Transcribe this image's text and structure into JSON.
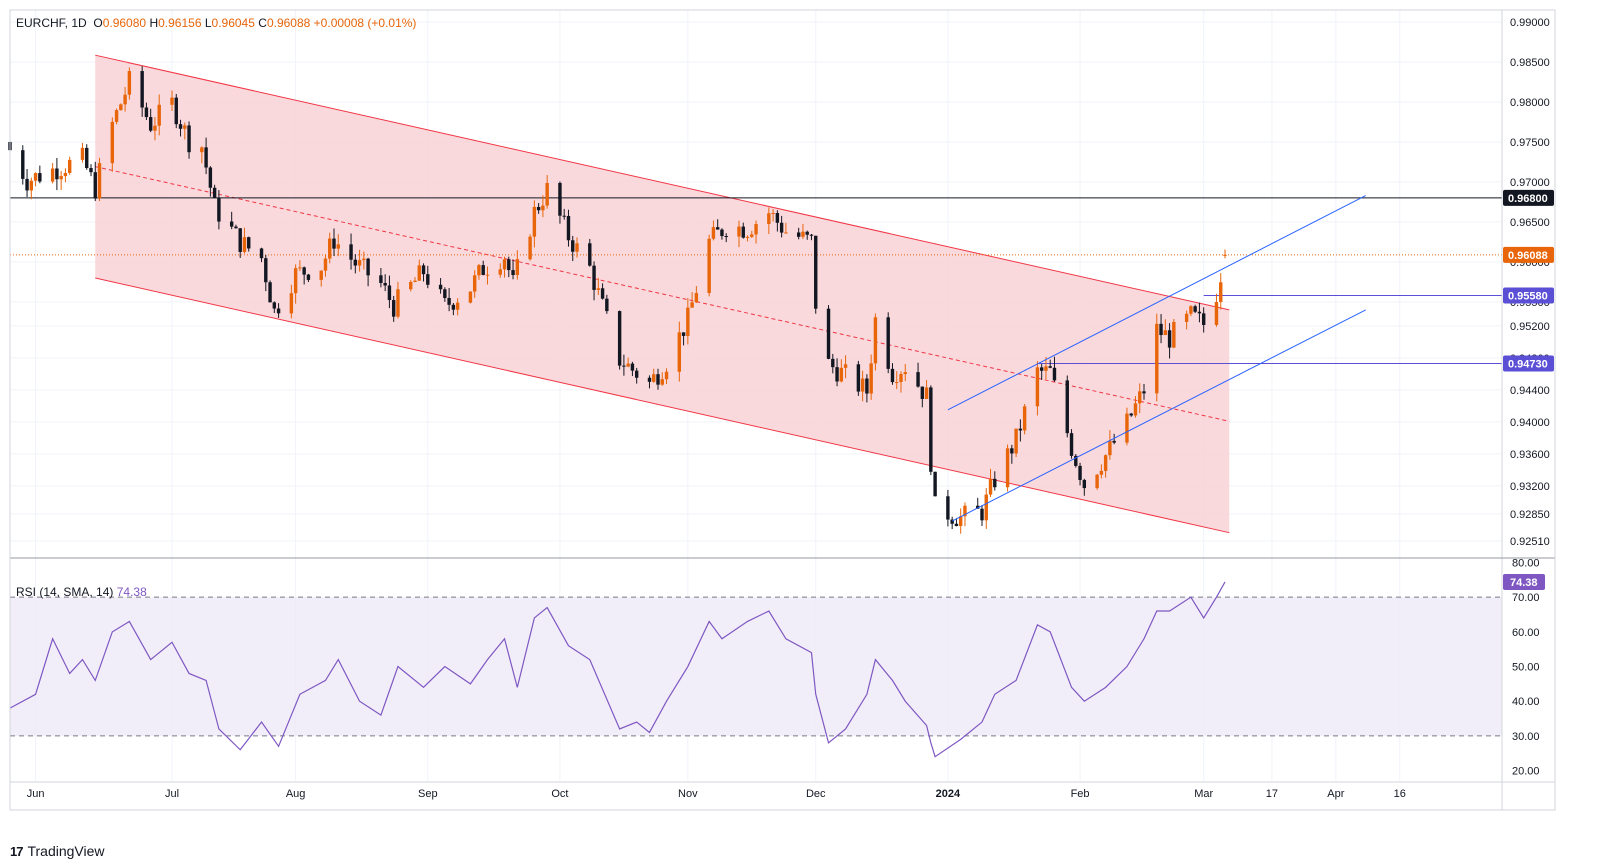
{
  "legend": {
    "symbol": "EURCHF",
    "timeframe": "1D",
    "o_label": "O",
    "open": "0.96080",
    "h_label": "H",
    "high": "0.96156",
    "l_label": "L",
    "low": "0.96045",
    "c_label": "C",
    "close": "0.96088",
    "change": "+0.00008 (+0.01%)"
  },
  "rsi_legend": {
    "label": "RSI (14, SMA, 14)",
    "value": "74.38"
  },
  "brand": {
    "logo": "17",
    "name": "TradingView"
  },
  "colors": {
    "up": "#e8650a",
    "down": "#131722",
    "channel_fill": "#f8cfd3",
    "channel_line": "#f23645",
    "trend_line": "#2962ff",
    "hline_black": "#131722",
    "hline_purple": "#5b4fd6",
    "rsi_line": "#7e57c2",
    "rsi_band": "#ede7f6",
    "price_badge": "#e8650a"
  },
  "chart_data": [
    {
      "type": "candlestick",
      "title": "EURCHF, 1D",
      "y_axis": {
        "range": [
          0.9231,
          0.9915
        ],
        "ticks": [
          "0.99000",
          "0.98500",
          "0.98000",
          "0.97500",
          "0.97000",
          "0.96500",
          "0.96000",
          "0.95500",
          "0.95200",
          "0.94800",
          "0.94400",
          "0.94000",
          "0.93600",
          "0.93200",
          "0.92850",
          "0.92510"
        ]
      },
      "x_axis": {
        "labels": [
          "Jun",
          "Jul",
          "Aug",
          "Sep",
          "Oct",
          "Nov",
          "Dec",
          "2024",
          "Feb",
          "Mar",
          "17",
          "Apr",
          "16"
        ]
      },
      "price_path": [
        [
          "2023-05-26",
          0.974
        ],
        [
          "2023-05-30",
          0.9702
        ],
        [
          "2023-06-05",
          0.9715
        ],
        [
          "2023-06-12",
          0.9728
        ],
        [
          "2023-06-15",
          0.9692
        ],
        [
          "2023-06-19",
          0.9772
        ],
        [
          "2023-06-23",
          0.9825
        ],
        [
          "2023-06-28",
          0.9772
        ],
        [
          "2023-07-03",
          0.9798
        ],
        [
          "2023-07-07",
          0.9752
        ],
        [
          "2023-07-10",
          0.9745
        ],
        [
          "2023-07-13",
          0.9668
        ],
        [
          "2023-07-19",
          0.9625
        ],
        [
          "2023-07-24",
          0.9605
        ],
        [
          "2023-07-27",
          0.9538
        ],
        [
          "2023-08-01",
          0.9585
        ],
        [
          "2023-08-07",
          0.9595
        ],
        [
          "2023-08-10",
          0.9628
        ],
        [
          "2023-08-15",
          0.9598
        ],
        [
          "2023-08-21",
          0.9572
        ],
        [
          "2023-08-24",
          0.9545
        ],
        [
          "2023-08-31",
          0.9588
        ],
        [
          "2023-09-05",
          0.9545
        ],
        [
          "2023-09-11",
          0.9568
        ],
        [
          "2023-09-14",
          0.9592
        ],
        [
          "2023-09-19",
          0.9608
        ],
        [
          "2023-09-21",
          0.9572
        ],
        [
          "2023-09-26",
          0.9662
        ],
        [
          "2023-09-29",
          0.969
        ],
        [
          "2023-10-04",
          0.9632
        ],
        [
          "2023-10-09",
          0.9592
        ],
        [
          "2023-10-16",
          0.9478
        ],
        [
          "2023-10-23",
          0.9448
        ],
        [
          "2023-10-27",
          0.9475
        ],
        [
          "2023-11-01",
          0.9528
        ],
        [
          "2023-11-06",
          0.9625
        ],
        [
          "2023-11-10",
          0.9645
        ],
        [
          "2023-11-15",
          0.9642
        ],
        [
          "2023-11-20",
          0.9662
        ],
        [
          "2023-11-24",
          0.9638
        ],
        [
          "2023-11-30",
          0.9625
        ],
        [
          "2023-12-01",
          0.9548
        ],
        [
          "2023-12-04",
          0.9472
        ],
        [
          "2023-12-08",
          0.9458
        ],
        [
          "2023-12-13",
          0.9438
        ],
        [
          "2023-12-15",
          0.9528
        ],
        [
          "2023-12-19",
          0.9462
        ],
        [
          "2023-12-22",
          0.947
        ],
        [
          "2023-12-27",
          0.9432
        ],
        [
          "2023-12-28",
          0.9352
        ],
        [
          "2023-12-29",
          0.9292
        ],
        [
          "2024-01-04",
          0.928
        ],
        [
          "2024-01-09",
          0.9288
        ],
        [
          "2024-01-12",
          0.9328
        ],
        [
          "2024-01-17",
          0.9378
        ],
        [
          "2024-01-22",
          0.9462
        ],
        [
          "2024-01-25",
          0.9462
        ],
        [
          "2024-01-30",
          0.9368
        ],
        [
          "2024-02-02",
          0.9322
        ],
        [
          "2024-02-07",
          0.9358
        ],
        [
          "2024-02-12",
          0.9398
        ],
        [
          "2024-02-16",
          0.944
        ],
        [
          "2024-02-19",
          0.9515
        ],
        [
          "2024-02-22",
          0.9505
        ],
        [
          "2024-02-27",
          0.9532
        ],
        [
          "2024-03-01",
          0.9522
        ],
        [
          "2024-03-04",
          0.9562
        ],
        [
          "2024-03-06",
          0.9609
        ]
      ],
      "channel": {
        "upper": [
          [
            "2023-06-15",
            0.98585
          ],
          [
            "2024-03-07",
            0.954
          ]
        ],
        "lower": [
          [
            "2023-06-15",
            0.95799
          ],
          [
            "2024-03-07",
            0.92614
          ]
        ],
        "mid": [
          [
            "2023-06-15",
            0.97192
          ],
          [
            "2024-03-07",
            0.94007
          ]
        ]
      },
      "trend_lines": [
        [
          [
            "2024-01-01",
            0.9415
          ],
          [
            "2024-04-08",
            0.9683
          ]
        ],
        [
          [
            "2024-01-02",
            0.9276
          ],
          [
            "2024-04-08",
            0.954
          ]
        ]
      ],
      "h_lines": [
        {
          "value": "0.96800",
          "color": "black"
        },
        {
          "value": "0.95580",
          "color": "purple"
        },
        {
          "value": "0.94730",
          "color": "purple"
        }
      ],
      "current_price": "0.96088"
    },
    {
      "type": "line",
      "title": "RSI (14, SMA, 14)",
      "y_axis": {
        "range": [
          17,
          81
        ],
        "ticks": [
          "80.00",
          "70.00",
          "60.00",
          "50.00",
          "40.00",
          "30.00",
          "20.00"
        ]
      },
      "levels": [
        70,
        30
      ],
      "current_value": "74.38",
      "path": [
        [
          "2023-05-26",
          38
        ],
        [
          "2023-06-01",
          42
        ],
        [
          "2023-06-05",
          58
        ],
        [
          "2023-06-09",
          48
        ],
        [
          "2023-06-12",
          52
        ],
        [
          "2023-06-15",
          46
        ],
        [
          "2023-06-19",
          60
        ],
        [
          "2023-06-23",
          63
        ],
        [
          "2023-06-28",
          52
        ],
        [
          "2023-07-03",
          57
        ],
        [
          "2023-07-07",
          48
        ],
        [
          "2023-07-11",
          46
        ],
        [
          "2023-07-14",
          32
        ],
        [
          "2023-07-19",
          26
        ],
        [
          "2023-07-24",
          34
        ],
        [
          "2023-07-28",
          27
        ],
        [
          "2023-08-02",
          42
        ],
        [
          "2023-08-08",
          46
        ],
        [
          "2023-08-11",
          52
        ],
        [
          "2023-08-16",
          40
        ],
        [
          "2023-08-21",
          36
        ],
        [
          "2023-08-25",
          50
        ],
        [
          "2023-08-31",
          44
        ],
        [
          "2023-09-05",
          50
        ],
        [
          "2023-09-11",
          45
        ],
        [
          "2023-09-15",
          52
        ],
        [
          "2023-09-19",
          58
        ],
        [
          "2023-09-22",
          44
        ],
        [
          "2023-09-26",
          64
        ],
        [
          "2023-09-29",
          67
        ],
        [
          "2023-10-04",
          56
        ],
        [
          "2023-10-09",
          52
        ],
        [
          "2023-10-16",
          32
        ],
        [
          "2023-10-20",
          34
        ],
        [
          "2023-10-23",
          31
        ],
        [
          "2023-10-27",
          40
        ],
        [
          "2023-11-01",
          50
        ],
        [
          "2023-11-06",
          63
        ],
        [
          "2023-11-09",
          58
        ],
        [
          "2023-11-15",
          63
        ],
        [
          "2023-11-20",
          66
        ],
        [
          "2023-11-24",
          58
        ],
        [
          "2023-11-30",
          54
        ],
        [
          "2023-12-01",
          42
        ],
        [
          "2023-12-04",
          28
        ],
        [
          "2023-12-08",
          32
        ],
        [
          "2023-12-13",
          42
        ],
        [
          "2023-12-15",
          52
        ],
        [
          "2023-12-19",
          46
        ],
        [
          "2023-12-22",
          40
        ],
        [
          "2023-12-27",
          33
        ],
        [
          "2023-12-28",
          28
        ],
        [
          "2023-12-29",
          24
        ],
        [
          "2024-01-04",
          29
        ],
        [
          "2024-01-09",
          34
        ],
        [
          "2024-01-12",
          42
        ],
        [
          "2024-01-17",
          46
        ],
        [
          "2024-01-22",
          62
        ],
        [
          "2024-01-25",
          60
        ],
        [
          "2024-01-30",
          44
        ],
        [
          "2024-02-02",
          40
        ],
        [
          "2024-02-07",
          44
        ],
        [
          "2024-02-12",
          50
        ],
        [
          "2024-02-16",
          58
        ],
        [
          "2024-02-19",
          66
        ],
        [
          "2024-02-22",
          66
        ],
        [
          "2024-02-27",
          70
        ],
        [
          "2024-03-01",
          64
        ],
        [
          "2024-03-04",
          70
        ],
        [
          "2024-03-06",
          74.38
        ]
      ]
    }
  ]
}
